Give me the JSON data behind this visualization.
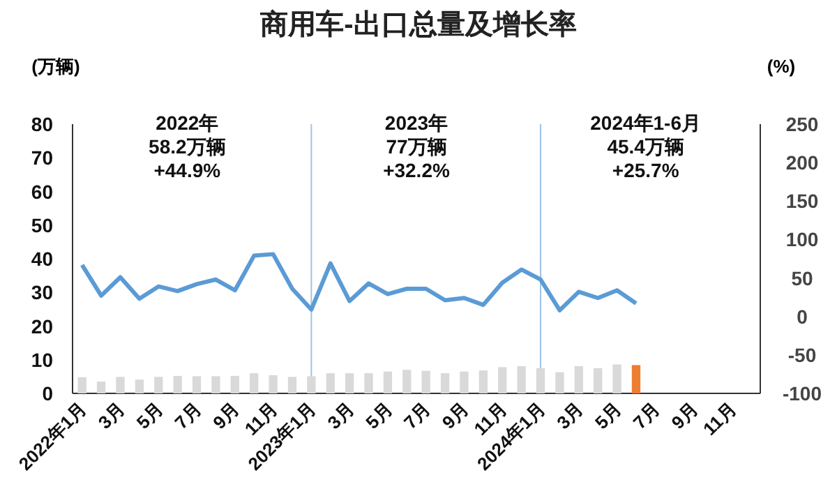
{
  "chart_data": {
    "type": "bar",
    "title": "商用车-出口总量及增长率",
    "ylabel": "(万辆)",
    "y2label": "(%)",
    "categories": [
      "2022年1月",
      null,
      "3月",
      null,
      "5月",
      null,
      "7月",
      null,
      "9月",
      null,
      "11月",
      null,
      "2023年1月",
      null,
      "3月",
      null,
      "5月",
      null,
      "7月",
      null,
      "9月",
      null,
      "11月",
      null,
      "2024年1月",
      null,
      "3月",
      null,
      "5月",
      null,
      "7月",
      null,
      "9月",
      null,
      "11月",
      null
    ],
    "series": [
      {
        "type": "bar",
        "colors": [
          "#d9d9d9",
          "#d9d9d9",
          "#d9d9d9",
          "#d9d9d9",
          "#d9d9d9",
          "#d9d9d9",
          "#d9d9d9",
          "#d9d9d9",
          "#d9d9d9",
          "#d9d9d9",
          "#d9d9d9",
          "#d9d9d9",
          "#d9d9d9",
          "#d9d9d9",
          "#d9d9d9",
          "#d9d9d9",
          "#d9d9d9",
          "#d9d9d9",
          "#d9d9d9",
          "#d9d9d9",
          "#d9d9d9",
          "#d9d9d9",
          "#d9d9d9",
          "#d9d9d9",
          "#d9d9d9",
          "#d9d9d9",
          "#d9d9d9",
          "#d9d9d9",
          "#d9d9d9",
          "#ed7d31",
          null,
          null,
          null,
          null,
          null,
          null
        ],
        "values": [
          4.8,
          3.5,
          4.9,
          4.1,
          4.9,
          5.2,
          5.1,
          5.1,
          5.2,
          6.0,
          5.4,
          4.9,
          5.1,
          6.0,
          6.0,
          6.0,
          6.5,
          7.0,
          6.7,
          6.0,
          6.5,
          6.8,
          7.8,
          8.1,
          7.5,
          6.3,
          8.1,
          7.5,
          8.6,
          8.4,
          null,
          null,
          null,
          null,
          null,
          null
        ]
      },
      {
        "type": "line",
        "axis": "y2",
        "color": "#5b9bd5",
        "values": [
          67,
          27,
          51,
          23,
          39,
          33,
          42,
          48,
          34,
          79,
          81,
          36,
          9,
          69,
          20,
          43,
          29,
          36,
          36,
          21,
          24,
          15,
          44,
          61,
          48,
          8,
          32,
          24,
          34,
          17,
          null,
          null,
          null,
          null,
          null,
          null
        ]
      }
    ],
    "ylim": [
      0,
      80
    ],
    "yticks": [
      0,
      10,
      20,
      30,
      40,
      50,
      60,
      70,
      80
    ],
    "y2lim": [
      -100,
      250
    ],
    "y2ticks": [
      -100,
      -50,
      0,
      50,
      100,
      150,
      200,
      250
    ],
    "ref_lines": [
      {
        "axis": "x",
        "value": "2023年1月",
        "color": "#9dc3e6"
      },
      {
        "axis": "x",
        "value": "2024年1月",
        "color": "#9dc3e6"
      }
    ],
    "annotations": [
      "2022年\n58.2万辆\n+44.9%",
      "2023年\n77万辆\n+32.2%",
      "2024年1-6月\n45.4万辆\n+25.7%"
    ],
    "grid": false,
    "marker": "none",
    "line_style": "solid"
  }
}
